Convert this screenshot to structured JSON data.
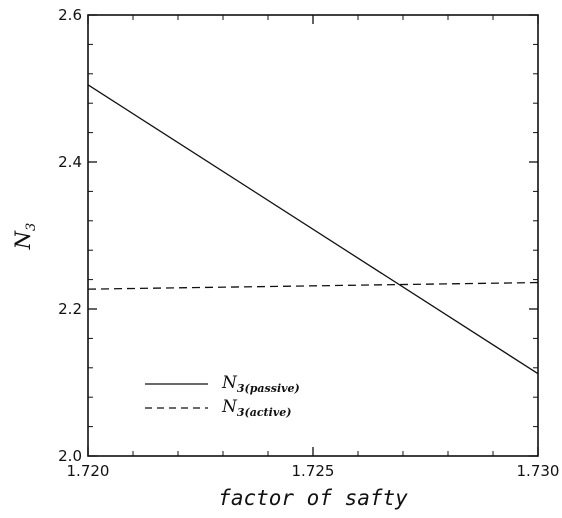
{
  "chart_data": {
    "type": "line",
    "xlabel": "factor of safty",
    "ylabel": {
      "main": "N",
      "sub": "3"
    },
    "xlim": [
      1.72,
      1.73
    ],
    "ylim": [
      2.0,
      2.6
    ],
    "xticks": [
      "1.720",
      "1.725",
      "1.730"
    ],
    "yticks": [
      "2.0",
      "2.2",
      "2.4",
      "2.6"
    ],
    "grid": false,
    "legend_position": "lower-left",
    "series": [
      {
        "name": "N3(passive)",
        "label_main": "N",
        "label_sub": "3(passive)",
        "style": "solid",
        "color": "#111111",
        "x": [
          1.72,
          1.73
        ],
        "y": [
          2.505,
          2.112
        ]
      },
      {
        "name": "N3(active)",
        "label_main": "N",
        "label_sub": "3(active)",
        "style": "dashed",
        "color": "#111111",
        "x": [
          1.72,
          1.73
        ],
        "y": [
          2.227,
          2.236
        ]
      }
    ]
  }
}
